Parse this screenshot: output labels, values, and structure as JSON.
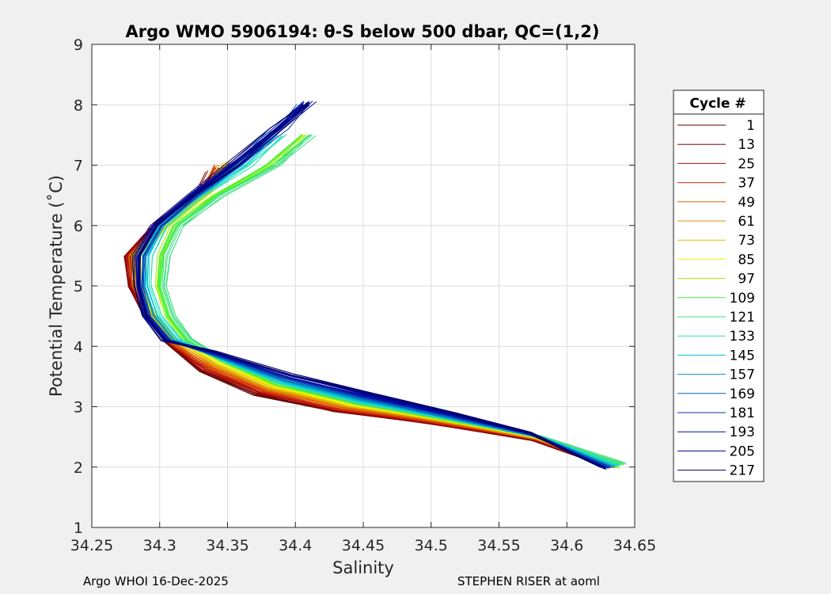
{
  "footer": {
    "left": "Argo WHOI 16-Dec-2025",
    "right": "STEPHEN RISER at aoml"
  },
  "chart_data": {
    "type": "line",
    "title": "Argo WMO 5906194: θ-S below 500 dbar,  QC=(1,2)",
    "xlabel": "Salinity",
    "ylabel": "Potential Temperature (˚C)",
    "xlim": [
      34.25,
      34.65
    ],
    "ylim": [
      1,
      9
    ],
    "xticks": [
      "34.25",
      "34.3",
      "34.35",
      "34.4",
      "34.45",
      "34.5",
      "34.55",
      "34.6",
      "34.65"
    ],
    "yticks": [
      "1",
      "2",
      "3",
      "4",
      "5",
      "6",
      "7",
      "8",
      "9"
    ],
    "grid": true,
    "legend": {
      "title": "Cycle #",
      "position": "right-outside"
    },
    "series": [
      {
        "name": "1",
        "color": "#5a0000",
        "points": [
          [
            34.63,
            2.0
          ],
          [
            34.575,
            2.45
          ],
          [
            34.5,
            2.72
          ],
          [
            34.43,
            2.92
          ],
          [
            34.37,
            3.2
          ],
          [
            34.33,
            3.6
          ],
          [
            34.305,
            4.05
          ],
          [
            34.29,
            4.5
          ],
          [
            34.278,
            5.0
          ],
          [
            34.276,
            5.5
          ],
          [
            34.3,
            6.05
          ],
          [
            34.33,
            6.55
          ],
          [
            34.34,
            6.9
          ]
        ]
      },
      {
        "name": "13",
        "color": "#8b0000",
        "points": [
          [
            34.632,
            2.0
          ],
          [
            34.575,
            2.46
          ],
          [
            34.5,
            2.73
          ],
          [
            34.43,
            2.93
          ],
          [
            34.372,
            3.22
          ],
          [
            34.332,
            3.6
          ],
          [
            34.307,
            4.05
          ],
          [
            34.29,
            4.5
          ],
          [
            34.279,
            5.0
          ],
          [
            34.277,
            5.5
          ],
          [
            34.3,
            6.05
          ],
          [
            34.33,
            6.55
          ],
          [
            34.34,
            6.9
          ]
        ]
      },
      {
        "name": "25",
        "color": "#b01000",
        "points": [
          [
            34.634,
            2.0
          ],
          [
            34.576,
            2.46
          ],
          [
            34.5,
            2.74
          ],
          [
            34.432,
            2.95
          ],
          [
            34.374,
            3.24
          ],
          [
            34.334,
            3.62
          ],
          [
            34.308,
            4.06
          ],
          [
            34.291,
            4.5
          ],
          [
            34.28,
            5.0
          ],
          [
            34.278,
            5.5
          ],
          [
            34.301,
            6.05
          ],
          [
            34.331,
            6.55
          ],
          [
            34.342,
            6.95
          ]
        ]
      },
      {
        "name": "37",
        "color": "#d03010",
        "points": [
          [
            34.635,
            2.0
          ],
          [
            34.576,
            2.47
          ],
          [
            34.502,
            2.75
          ],
          [
            34.434,
            2.96
          ],
          [
            34.376,
            3.26
          ],
          [
            34.336,
            3.64
          ],
          [
            34.309,
            4.06
          ],
          [
            34.292,
            4.5
          ],
          [
            34.281,
            5.0
          ],
          [
            34.279,
            5.5
          ],
          [
            34.302,
            6.05
          ],
          [
            34.332,
            6.55
          ],
          [
            34.344,
            6.95
          ]
        ]
      },
      {
        "name": "49",
        "color": "#e06000",
        "points": [
          [
            34.636,
            2.0
          ],
          [
            34.577,
            2.47
          ],
          [
            34.503,
            2.76
          ],
          [
            34.436,
            2.98
          ],
          [
            34.378,
            3.28
          ],
          [
            34.338,
            3.66
          ],
          [
            34.31,
            4.07
          ],
          [
            34.293,
            4.5
          ],
          [
            34.282,
            5.0
          ],
          [
            34.28,
            5.5
          ],
          [
            34.303,
            6.05
          ],
          [
            34.333,
            6.55
          ],
          [
            34.346,
            7.0
          ]
        ]
      },
      {
        "name": "61",
        "color": "#e09000",
        "points": [
          [
            34.636,
            2.0
          ],
          [
            34.577,
            2.48
          ],
          [
            34.504,
            2.77
          ],
          [
            34.438,
            3.0
          ],
          [
            34.38,
            3.3
          ],
          [
            34.34,
            3.68
          ],
          [
            34.311,
            4.08
          ],
          [
            34.294,
            4.5
          ],
          [
            34.283,
            5.0
          ],
          [
            34.281,
            5.5
          ],
          [
            34.304,
            6.05
          ],
          [
            34.334,
            6.55
          ],
          [
            34.348,
            7.0
          ]
        ]
      },
      {
        "name": "73",
        "color": "#e0c000",
        "points": [
          [
            34.637,
            2.0
          ],
          [
            34.578,
            2.48
          ],
          [
            34.505,
            2.78
          ],
          [
            34.44,
            3.01
          ],
          [
            34.382,
            3.32
          ],
          [
            34.342,
            3.7
          ],
          [
            34.312,
            4.08
          ],
          [
            34.295,
            4.5
          ],
          [
            34.284,
            5.0
          ],
          [
            34.282,
            5.5
          ],
          [
            34.305,
            6.05
          ],
          [
            34.335,
            6.55
          ],
          [
            34.35,
            7.05
          ]
        ]
      },
      {
        "name": "85",
        "color": "#f0f000",
        "points": [
          [
            34.637,
            2.0
          ],
          [
            34.579,
            2.49
          ],
          [
            34.506,
            2.79
          ],
          [
            34.442,
            3.03
          ],
          [
            34.384,
            3.34
          ],
          [
            34.344,
            3.72
          ],
          [
            34.313,
            4.09
          ],
          [
            34.296,
            4.5
          ],
          [
            34.285,
            5.0
          ],
          [
            34.283,
            5.5
          ],
          [
            34.306,
            6.05
          ],
          [
            34.336,
            6.55
          ],
          [
            34.352,
            7.05
          ]
        ]
      },
      {
        "name": "97",
        "color": "#a0f000",
        "points": [
          [
            34.64,
            2.05
          ],
          [
            34.58,
            2.5
          ],
          [
            34.507,
            2.8
          ],
          [
            34.444,
            3.05
          ],
          [
            34.386,
            3.36
          ],
          [
            34.346,
            3.74
          ],
          [
            34.318,
            4.1
          ],
          [
            34.305,
            4.5
          ],
          [
            34.298,
            5.0
          ],
          [
            34.3,
            5.5
          ],
          [
            34.31,
            6.0
          ],
          [
            34.34,
            6.5
          ],
          [
            34.38,
            7.0
          ],
          [
            34.405,
            7.5
          ]
        ]
      },
      {
        "name": "109",
        "color": "#40f040",
        "points": [
          [
            34.641,
            2.05
          ],
          [
            34.58,
            2.5
          ],
          [
            34.508,
            2.8
          ],
          [
            34.445,
            3.05
          ],
          [
            34.387,
            3.37
          ],
          [
            34.347,
            3.75
          ],
          [
            34.32,
            4.1
          ],
          [
            34.307,
            4.5
          ],
          [
            34.3,
            5.0
          ],
          [
            34.302,
            5.5
          ],
          [
            34.312,
            6.0
          ],
          [
            34.342,
            6.5
          ],
          [
            34.382,
            7.0
          ],
          [
            34.407,
            7.5
          ]
        ]
      },
      {
        "name": "121",
        "color": "#40e080",
        "points": [
          [
            34.642,
            2.06
          ],
          [
            34.58,
            2.51
          ],
          [
            34.508,
            2.81
          ],
          [
            34.446,
            3.06
          ],
          [
            34.388,
            3.38
          ],
          [
            34.348,
            3.76
          ],
          [
            34.322,
            4.12
          ],
          [
            34.31,
            4.5
          ],
          [
            34.303,
            5.0
          ],
          [
            34.305,
            5.5
          ],
          [
            34.315,
            6.0
          ],
          [
            34.345,
            6.5
          ],
          [
            34.385,
            7.0
          ],
          [
            34.41,
            7.5
          ]
        ]
      },
      {
        "name": "133",
        "color": "#20e0c0",
        "points": [
          [
            34.638,
            2.02
          ],
          [
            34.579,
            2.5
          ],
          [
            34.509,
            2.82
          ],
          [
            34.447,
            3.08
          ],
          [
            34.389,
            3.4
          ],
          [
            34.347,
            3.78
          ],
          [
            34.315,
            4.1
          ],
          [
            34.3,
            4.5
          ],
          [
            34.292,
            5.0
          ],
          [
            34.292,
            5.5
          ],
          [
            34.303,
            6.0
          ],
          [
            34.332,
            6.5
          ],
          [
            34.365,
            7.0
          ],
          [
            34.39,
            7.5
          ]
        ]
      },
      {
        "name": "145",
        "color": "#00c0e0",
        "points": [
          [
            34.636,
            2.01
          ],
          [
            34.578,
            2.51
          ],
          [
            34.51,
            2.83
          ],
          [
            34.448,
            3.1
          ],
          [
            34.39,
            3.42
          ],
          [
            34.346,
            3.8
          ],
          [
            34.312,
            4.1
          ],
          [
            34.297,
            4.5
          ],
          [
            34.29,
            5.0
          ],
          [
            34.29,
            5.5
          ],
          [
            34.302,
            6.0
          ],
          [
            34.33,
            6.5
          ],
          [
            34.36,
            7.0
          ],
          [
            34.385,
            7.5
          ]
        ]
      },
      {
        "name": "157",
        "color": "#0090c0",
        "points": [
          [
            34.634,
            2.0
          ],
          [
            34.577,
            2.52
          ],
          [
            34.511,
            2.84
          ],
          [
            34.449,
            3.12
          ],
          [
            34.391,
            3.44
          ],
          [
            34.345,
            3.82
          ],
          [
            34.31,
            4.1
          ],
          [
            34.295,
            4.5
          ],
          [
            34.288,
            5.0
          ],
          [
            34.288,
            5.5
          ],
          [
            34.3,
            6.0
          ],
          [
            34.328,
            6.5
          ],
          [
            34.358,
            7.0
          ],
          [
            34.385,
            7.55
          ]
        ]
      },
      {
        "name": "169",
        "color": "#0060c0",
        "points": [
          [
            34.632,
            2.0
          ],
          [
            34.576,
            2.53
          ],
          [
            34.512,
            2.85
          ],
          [
            34.45,
            3.14
          ],
          [
            34.392,
            3.46
          ],
          [
            34.344,
            3.84
          ],
          [
            34.308,
            4.1
          ],
          [
            34.293,
            4.5
          ],
          [
            34.287,
            5.0
          ],
          [
            34.287,
            5.5
          ],
          [
            34.3,
            6.0
          ],
          [
            34.327,
            6.5
          ],
          [
            34.357,
            7.0
          ],
          [
            34.39,
            7.6
          ],
          [
            34.405,
            8.0
          ]
        ]
      },
      {
        "name": "181",
        "color": "#1030b0",
        "points": [
          [
            34.63,
            1.99
          ],
          [
            34.575,
            2.54
          ],
          [
            34.513,
            2.86
          ],
          [
            34.451,
            3.16
          ],
          [
            34.393,
            3.48
          ],
          [
            34.343,
            3.86
          ],
          [
            34.306,
            4.1
          ],
          [
            34.291,
            4.5
          ],
          [
            34.286,
            5.0
          ],
          [
            34.286,
            5.5
          ],
          [
            34.299,
            6.0
          ],
          [
            34.326,
            6.5
          ],
          [
            34.356,
            7.0
          ],
          [
            34.39,
            7.6
          ],
          [
            34.408,
            8.0
          ]
        ]
      },
      {
        "name": "193",
        "color": "#0010a0",
        "points": [
          [
            34.629,
            1.99
          ],
          [
            34.574,
            2.55
          ],
          [
            34.514,
            2.87
          ],
          [
            34.452,
            3.18
          ],
          [
            34.394,
            3.5
          ],
          [
            34.342,
            3.88
          ],
          [
            34.305,
            4.1
          ],
          [
            34.29,
            4.5
          ],
          [
            34.285,
            5.0
          ],
          [
            34.285,
            5.5
          ],
          [
            34.298,
            6.0
          ],
          [
            34.325,
            6.5
          ],
          [
            34.355,
            7.0
          ],
          [
            34.388,
            7.6
          ],
          [
            34.41,
            8.05
          ]
        ]
      },
      {
        "name": "205",
        "color": "#000090",
        "points": [
          [
            34.628,
            1.98
          ],
          [
            34.573,
            2.56
          ],
          [
            34.515,
            2.88
          ],
          [
            34.453,
            3.2
          ],
          [
            34.395,
            3.52
          ],
          [
            34.341,
            3.9
          ],
          [
            34.304,
            4.1
          ],
          [
            34.29,
            4.5
          ],
          [
            34.284,
            5.0
          ],
          [
            34.284,
            5.5
          ],
          [
            34.297,
            6.0
          ],
          [
            34.324,
            6.5
          ],
          [
            34.354,
            7.0
          ],
          [
            34.387,
            7.6
          ],
          [
            34.408,
            8.05
          ]
        ]
      },
      {
        "name": "217",
        "color": "#000070",
        "points": [
          [
            34.627,
            1.98
          ],
          [
            34.572,
            2.57
          ],
          [
            34.516,
            2.89
          ],
          [
            34.454,
            3.22
          ],
          [
            34.396,
            3.54
          ],
          [
            34.34,
            3.92
          ],
          [
            34.303,
            4.1
          ],
          [
            34.289,
            4.5
          ],
          [
            34.283,
            5.0
          ],
          [
            34.283,
            5.5
          ],
          [
            34.296,
            6.0
          ],
          [
            34.323,
            6.5
          ],
          [
            34.353,
            7.0
          ],
          [
            34.386,
            7.6
          ],
          [
            34.406,
            8.0
          ]
        ]
      }
    ]
  }
}
